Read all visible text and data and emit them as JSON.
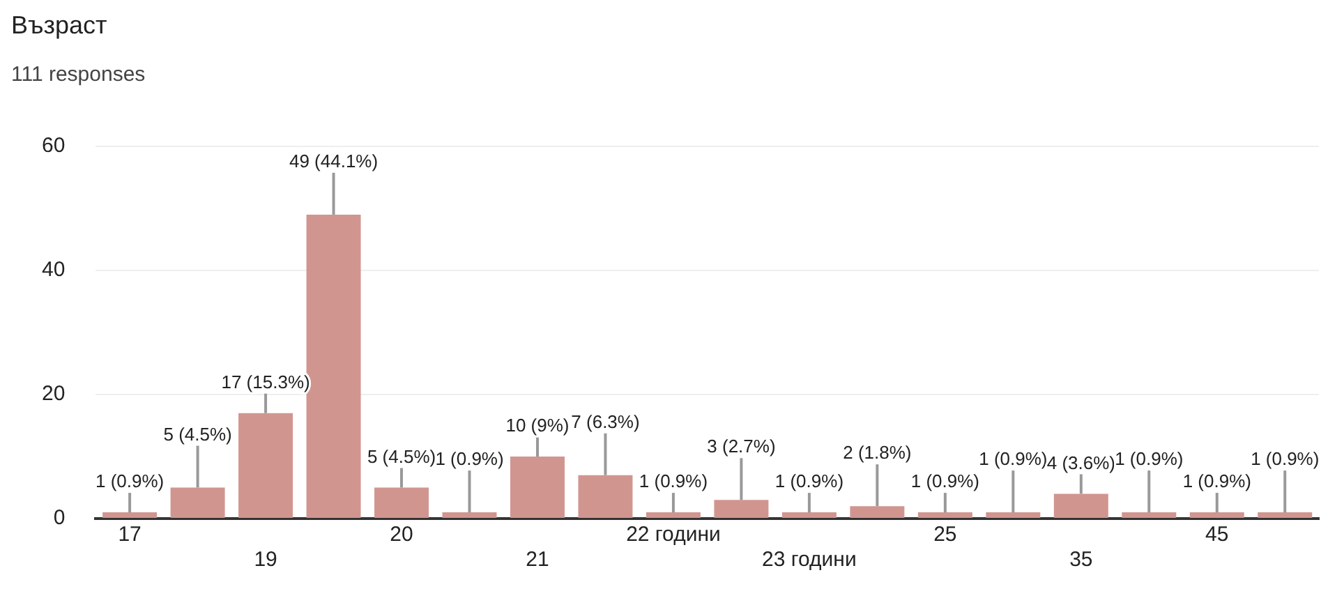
{
  "chart_data": {
    "type": "bar",
    "title": "Възраст",
    "subtitle": "111 responses",
    "categories": [
      "17",
      null,
      "19",
      null,
      "20",
      null,
      "21",
      null,
      "22 години",
      null,
      "23 години",
      null,
      "25",
      null,
      "35",
      null,
      "45",
      null
    ],
    "values": [
      1,
      5,
      17,
      49,
      5,
      1,
      10,
      7,
      1,
      3,
      1,
      2,
      1,
      1,
      4,
      1,
      1,
      1
    ],
    "value_labels": [
      "1 (0.9%)",
      "5 (4.5%)",
      "17 (15.3%)",
      "49 (44.1%)",
      "5 (4.5%)",
      "1 (0.9%)",
      "10 (9%)",
      "7 (6.3%)",
      "1 (0.9%)",
      "3 (2.7%)",
      "1 (0.9%)",
      "2 (1.8%)",
      "1 (0.9%)",
      "1 (0.9%)",
      "4 (3.6%)",
      "1 (0.9%)",
      "1 (0.9%)",
      "1 (0.9%)"
    ],
    "color": "#d1958f",
    "ylim": [
      0,
      60
    ],
    "yticks": [
      0,
      20,
      40,
      60
    ],
    "grid": "y",
    "legend": false
  }
}
